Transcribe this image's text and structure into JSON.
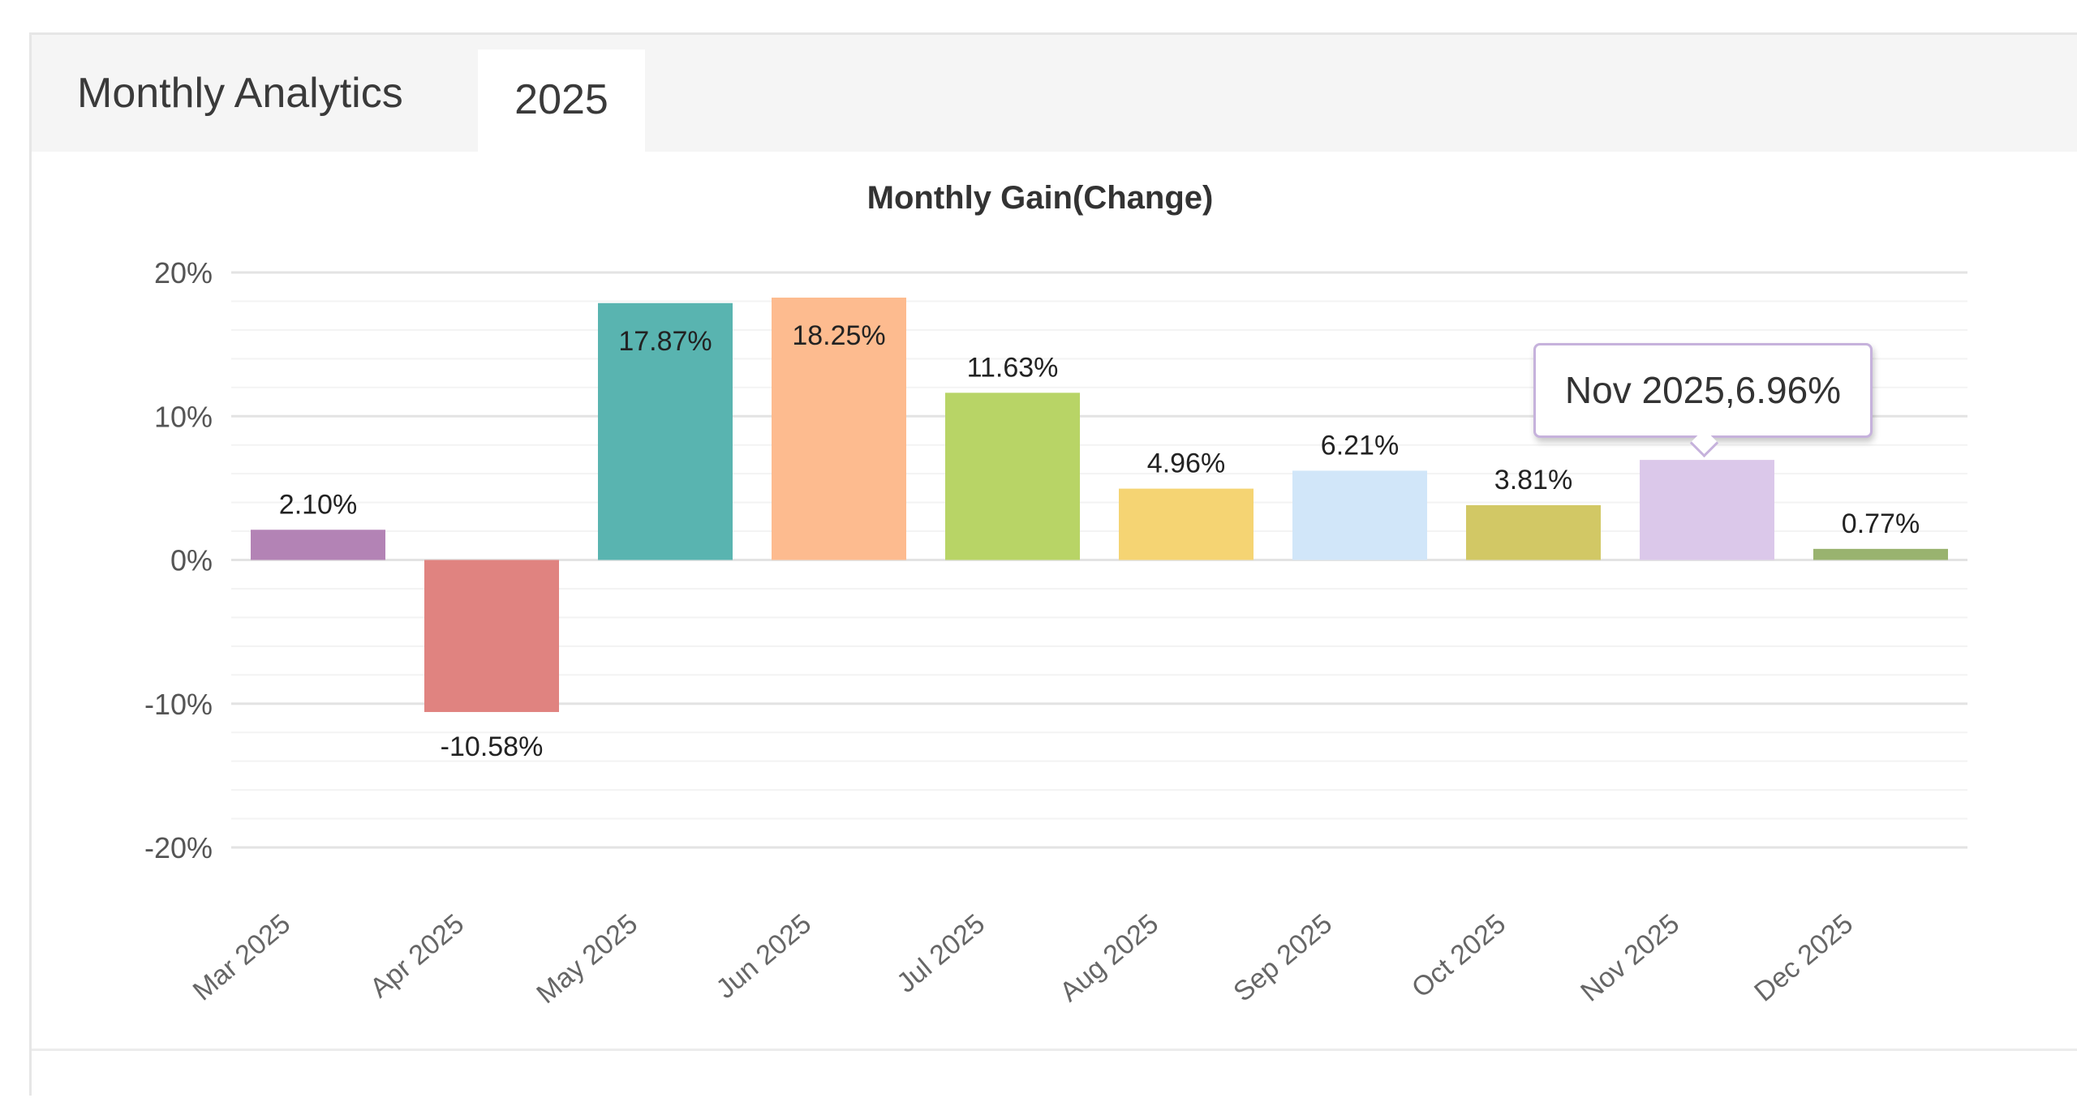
{
  "tabs": {
    "title": "Monthly Analytics",
    "year": "2025"
  },
  "tooltip": {
    "text": "Nov 2025,6.96%"
  },
  "chart_data": {
    "type": "bar",
    "title": "Monthly Gain(Change)",
    "xlabel": "",
    "ylabel": "",
    "ylim": [
      -20,
      20
    ],
    "yticks": [
      20,
      10,
      0,
      -10,
      -20
    ],
    "ytick_labels": [
      "20%",
      "10%",
      "0%",
      "-10%",
      "-20%"
    ],
    "grid": true,
    "categories": [
      "Mar 2025",
      "Apr 2025",
      "May 2025",
      "Jun 2025",
      "Jul 2025",
      "Aug 2025",
      "Sep 2025",
      "Oct 2025",
      "Nov 2025",
      "Dec 2025"
    ],
    "values": [
      2.1,
      -10.58,
      17.87,
      18.25,
      11.63,
      4.96,
      6.21,
      3.81,
      6.96,
      0.77
    ],
    "data_labels": [
      "2.10%",
      "-10.58%",
      "17.87%",
      "18.25%",
      "11.63%",
      "4.96%",
      "6.21%",
      "3.81%",
      "",
      "0.77%"
    ],
    "colors": [
      "#b383b5",
      "#e08380",
      "#59b4b0",
      "#fdbb8f",
      "#b8d466",
      "#f5d473",
      "#d1e6f9",
      "#d2c865",
      "#dbc8ea",
      "#99b36f"
    ]
  }
}
